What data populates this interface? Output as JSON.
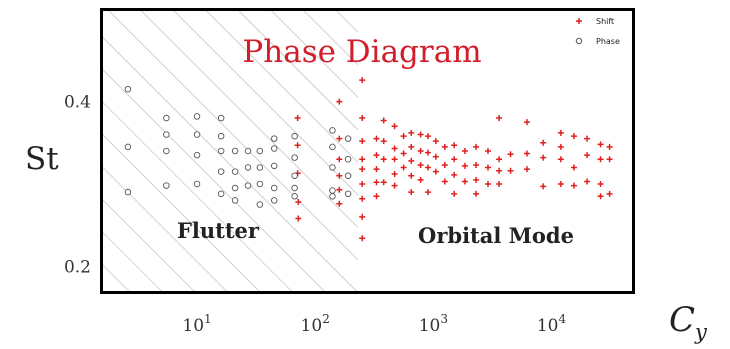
{
  "colors": {
    "shift": "#e0201e",
    "phase": "#555555",
    "title": "#d21e2a",
    "hatch": "#b4b4b4",
    "frame": "#000000"
  },
  "chart_data": {
    "type": "scatter",
    "title": "Phase Diagram",
    "xlabel": "C_y",
    "ylabel": "St",
    "x_scale": "log",
    "xlim": [
      1.6,
      48000
    ],
    "ylim": [
      0.17,
      0.51
    ],
    "x_ticks": [
      {
        "value": 10,
        "base": "10",
        "exp": "1"
      },
      {
        "value": 100,
        "base": "10",
        "exp": "2"
      },
      {
        "value": 1000,
        "base": "10",
        "exp": "3"
      },
      {
        "value": 10000,
        "base": "10",
        "exp": "4"
      }
    ],
    "y_ticks": [
      {
        "value": 0.2,
        "label": "0.2"
      },
      {
        "value": 0.4,
        "label": "0.4"
      }
    ],
    "grid": false,
    "legend_position": "top-right",
    "regions": [
      {
        "label": "Flutter",
        "x_range": [
          1.6,
          230
        ],
        "hatched": true
      },
      {
        "label": "Orbital Mode",
        "x_range": [
          230,
          48000
        ],
        "hatched": false
      }
    ],
    "series": [
      {
        "name": "Shift",
        "marker": "plus",
        "color": "#e0201e",
        "points": [
          [
            71,
            0.38
          ],
          [
            71,
            0.347
          ],
          [
            71,
            0.313
          ],
          [
            72,
            0.278
          ],
          [
            72,
            0.258
          ],
          [
            160,
            0.4
          ],
          [
            160,
            0.355
          ],
          [
            160,
            0.33
          ],
          [
            160,
            0.31
          ],
          [
            160,
            0.293
          ],
          [
            160,
            0.276
          ],
          [
            250,
            0.426
          ],
          [
            250,
            0.38
          ],
          [
            250,
            0.352
          ],
          [
            250,
            0.33
          ],
          [
            250,
            0.318
          ],
          [
            250,
            0.3
          ],
          [
            250,
            0.282
          ],
          [
            250,
            0.26
          ],
          [
            250,
            0.234
          ],
          [
            330,
            0.355
          ],
          [
            330,
            0.335
          ],
          [
            330,
            0.318
          ],
          [
            330,
            0.302
          ],
          [
            330,
            0.285
          ],
          [
            380,
            0.377
          ],
          [
            380,
            0.352
          ],
          [
            380,
            0.33
          ],
          [
            380,
            0.302
          ],
          [
            470,
            0.37
          ],
          [
            470,
            0.343
          ],
          [
            470,
            0.33
          ],
          [
            470,
            0.312
          ],
          [
            470,
            0.298
          ],
          [
            560,
            0.358
          ],
          [
            560,
            0.337
          ],
          [
            560,
            0.32
          ],
          [
            650,
            0.362
          ],
          [
            650,
            0.345
          ],
          [
            650,
            0.328
          ],
          [
            650,
            0.31
          ],
          [
            650,
            0.29
          ],
          [
            780,
            0.36
          ],
          [
            780,
            0.34
          ],
          [
            780,
            0.323
          ],
          [
            780,
            0.305
          ],
          [
            900,
            0.358
          ],
          [
            900,
            0.338
          ],
          [
            900,
            0.32
          ],
          [
            900,
            0.29
          ],
          [
            1050,
            0.352
          ],
          [
            1050,
            0.333
          ],
          [
            1050,
            0.315
          ],
          [
            1250,
            0.345
          ],
          [
            1250,
            0.323
          ],
          [
            1250,
            0.303
          ],
          [
            1500,
            0.347
          ],
          [
            1500,
            0.33
          ],
          [
            1500,
            0.311
          ],
          [
            1500,
            0.288
          ],
          [
            1850,
            0.34
          ],
          [
            1850,
            0.322
          ],
          [
            1850,
            0.303
          ],
          [
            2300,
            0.345
          ],
          [
            2300,
            0.323
          ],
          [
            2300,
            0.305
          ],
          [
            2300,
            0.288
          ],
          [
            2900,
            0.34
          ],
          [
            2900,
            0.32
          ],
          [
            2900,
            0.3
          ],
          [
            3600,
            0.38
          ],
          [
            3600,
            0.33
          ],
          [
            3600,
            0.316
          ],
          [
            3600,
            0.3
          ],
          [
            4500,
            0.336
          ],
          [
            4500,
            0.316
          ],
          [
            6200,
            0.375
          ],
          [
            6200,
            0.337
          ],
          [
            6200,
            0.318
          ],
          [
            8500,
            0.35
          ],
          [
            8500,
            0.332
          ],
          [
            8500,
            0.297
          ],
          [
            12000,
            0.362
          ],
          [
            12000,
            0.345
          ],
          [
            12000,
            0.33
          ],
          [
            12000,
            0.3
          ],
          [
            15500,
            0.358
          ],
          [
            15500,
            0.32
          ],
          [
            15500,
            0.298
          ],
          [
            20000,
            0.355
          ],
          [
            20000,
            0.335
          ],
          [
            20000,
            0.303
          ],
          [
            26000,
            0.348
          ],
          [
            26000,
            0.33
          ],
          [
            26000,
            0.3
          ],
          [
            26000,
            0.285
          ],
          [
            31000,
            0.345
          ],
          [
            31000,
            0.33
          ],
          [
            31000,
            0.288
          ]
        ]
      },
      {
        "name": "Phase",
        "marker": "circle",
        "color": "#555555",
        "points": [
          [
            2.6,
            0.415
          ],
          [
            2.6,
            0.345
          ],
          [
            2.6,
            0.29
          ],
          [
            5.5,
            0.38
          ],
          [
            5.5,
            0.36
          ],
          [
            5.5,
            0.34
          ],
          [
            5.5,
            0.298
          ],
          [
            10,
            0.382
          ],
          [
            10,
            0.36
          ],
          [
            10,
            0.335
          ],
          [
            10,
            0.3
          ],
          [
            16,
            0.38
          ],
          [
            16,
            0.358
          ],
          [
            16,
            0.34
          ],
          [
            16,
            0.315
          ],
          [
            16,
            0.288
          ],
          [
            21,
            0.34
          ],
          [
            21,
            0.315
          ],
          [
            21,
            0.295
          ],
          [
            21,
            0.28
          ],
          [
            27,
            0.34
          ],
          [
            27,
            0.32
          ],
          [
            27,
            0.298
          ],
          [
            34,
            0.34
          ],
          [
            34,
            0.32
          ],
          [
            34,
            0.3
          ],
          [
            34,
            0.275
          ],
          [
            45,
            0.355
          ],
          [
            45,
            0.343
          ],
          [
            45,
            0.322
          ],
          [
            45,
            0.295
          ],
          [
            45,
            0.28
          ],
          [
            67,
            0.358
          ],
          [
            67,
            0.332
          ],
          [
            67,
            0.31
          ],
          [
            67,
            0.295
          ],
          [
            67,
            0.285
          ],
          [
            140,
            0.365
          ],
          [
            140,
            0.345
          ],
          [
            140,
            0.32
          ],
          [
            140,
            0.292
          ],
          [
            140,
            0.285
          ],
          [
            190,
            0.355
          ],
          [
            190,
            0.33
          ],
          [
            190,
            0.31
          ],
          [
            190,
            0.288
          ]
        ]
      }
    ]
  }
}
